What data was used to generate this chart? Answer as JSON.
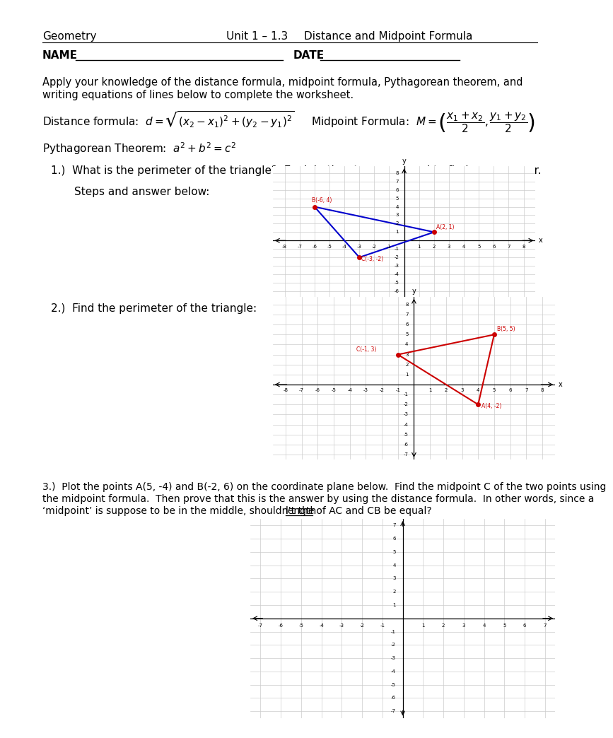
{
  "title_left": "Geometry",
  "title_center": "Unit 1 – 1.3",
  "title_right": "Distance and Midpoint Formula",
  "name_label": "NAME",
  "date_label": "DATE",
  "intro_text_1": "Apply your knowledge of the distance formula, midpoint formula, Pythagorean theorem, and",
  "intro_text_2": "writing equations of lines below to complete the worksheet.",
  "q1_text": "1.)  What is the perimeter of the triangle?  Explain the steps you used to find your answer.",
  "q1_sub": "Steps and answer below:",
  "q2_text": "2.)  Find the perimeter of the triangle:",
  "q3_line1": "3.)  Plot the points A(5, -4) and B(-2, 6) on the coordinate plane below.  Find the midpoint C of the two points using",
  "q3_line2": "the midpoint formula.  Then prove that this is the answer by using the distance formula.  In other words, since a",
  "q3_line3_pre": "‘midpoint’ is suppose to be in the middle, shouldn’t the ",
  "q3_line3_ul": "length",
  "q3_line3_post": " of AC and CB be equal?",
  "graph1_points": [
    [
      -6,
      4
    ],
    [
      2,
      1
    ],
    [
      -3,
      -2
    ]
  ],
  "graph1_labels": [
    "B(-6, 4)",
    "A(2, 1)",
    "C(-3, -2)"
  ],
  "graph1_triangle_color": "#0000cc",
  "graph1_dot_color": "#cc0000",
  "graph1_label_color": "#cc0000",
  "graph2_points": [
    [
      -1,
      3
    ],
    [
      5,
      5
    ],
    [
      4,
      -2
    ]
  ],
  "graph2_labels": [
    "C(-1, 3)",
    "B(5, 5)",
    "A(4, -2)"
  ],
  "graph2_triangle_color": "#cc0000",
  "graph2_dot_color": "#cc0000",
  "background_color": "#ffffff",
  "text_color": "#000000"
}
